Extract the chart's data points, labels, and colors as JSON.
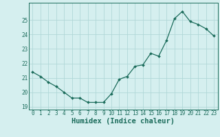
{
  "x": [
    0,
    1,
    2,
    3,
    4,
    5,
    6,
    7,
    8,
    9,
    10,
    11,
    12,
    13,
    14,
    15,
    16,
    17,
    18,
    19,
    20,
    21,
    22,
    23
  ],
  "y": [
    21.4,
    21.1,
    20.7,
    20.4,
    20.0,
    19.6,
    19.6,
    19.3,
    19.3,
    19.3,
    19.9,
    20.9,
    21.1,
    21.8,
    21.9,
    22.7,
    22.5,
    23.6,
    25.1,
    25.6,
    24.9,
    24.7,
    24.4,
    23.9
  ],
  "xlabel": "Humidex (Indice chaleur)",
  "bg_color": "#d5efef",
  "line_color": "#1a6b5a",
  "marker_color": "#1a6b5a",
  "grid_color": "#b0d8d8",
  "text_color": "#1a6b5a",
  "ylim": [
    18.8,
    26.2
  ],
  "xlim": [
    -0.5,
    23.5
  ],
  "yticks": [
    19,
    20,
    21,
    22,
    23,
    24,
    25
  ],
  "xtick_labels": [
    "0",
    "1",
    "2",
    "3",
    "4",
    "5",
    "6",
    "7",
    "8",
    "9",
    "10",
    "11",
    "12",
    "13",
    "14",
    "15",
    "16",
    "17",
    "18",
    "19",
    "20",
    "21",
    "22",
    "23"
  ],
  "tick_fontsize": 5.5,
  "xlabel_fontsize": 7.5
}
